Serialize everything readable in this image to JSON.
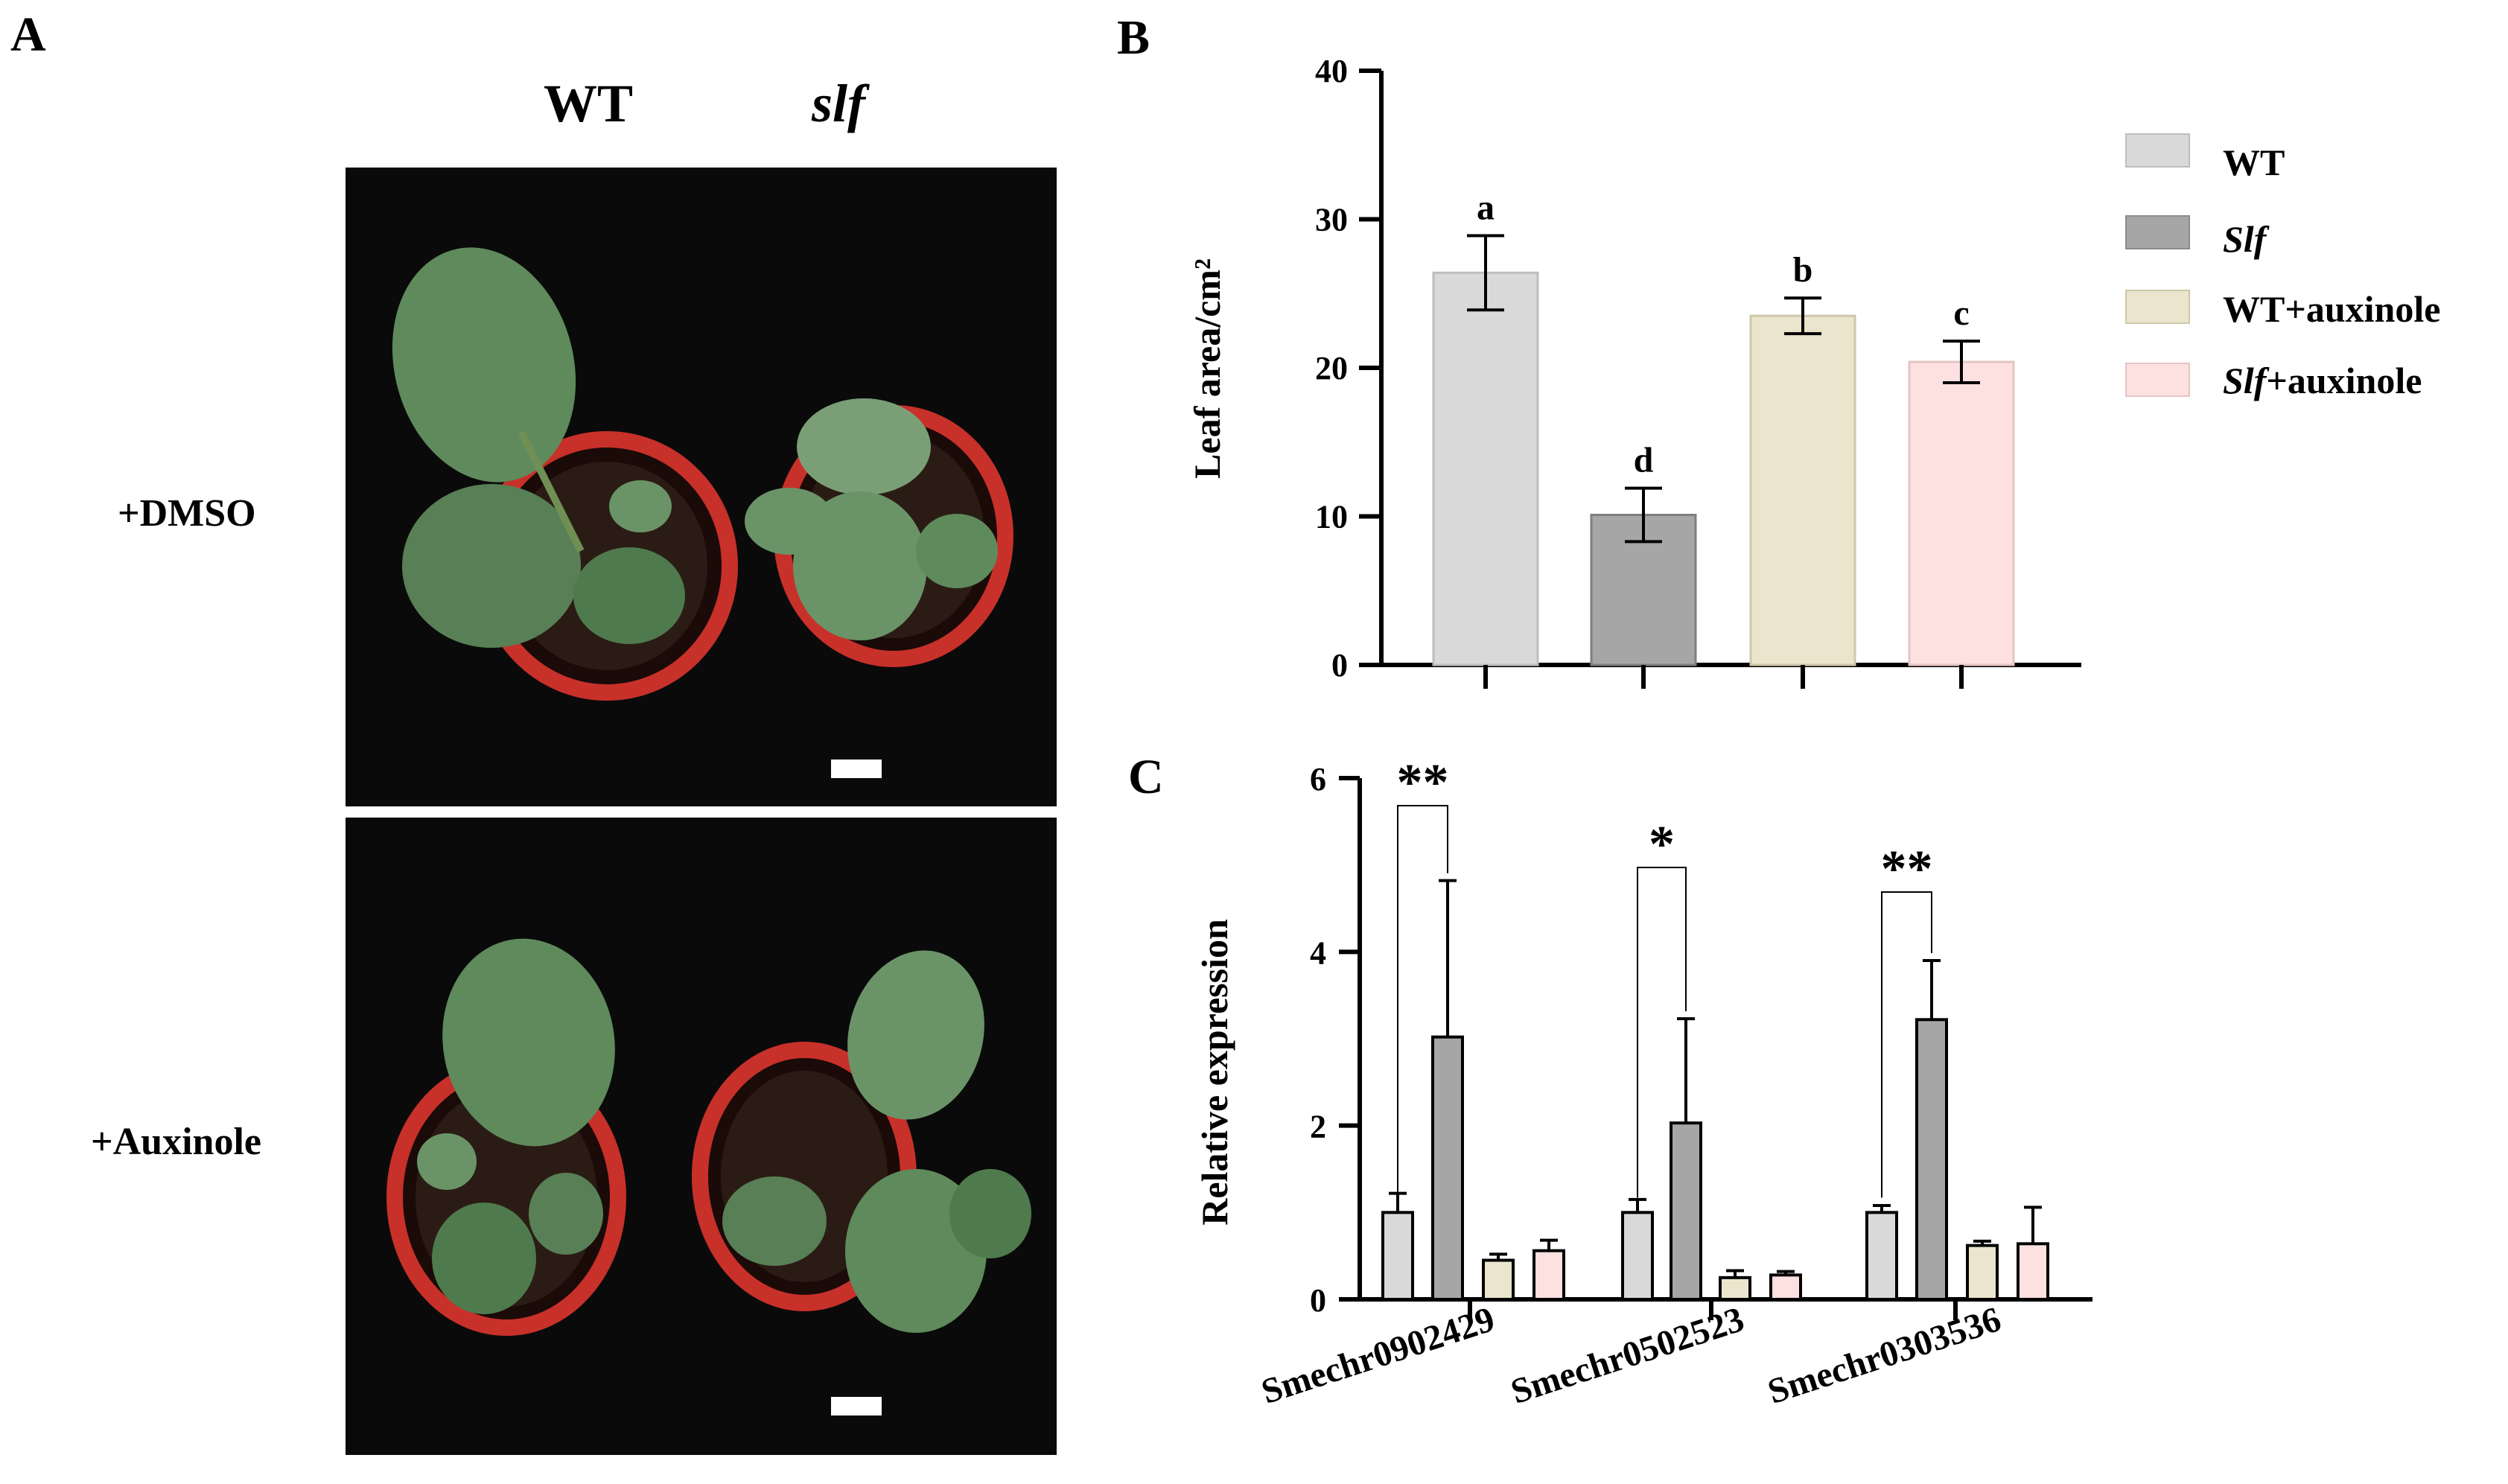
{
  "panels": {
    "A": {
      "letter": "A",
      "col_headers": [
        "WT",
        "slf"
      ],
      "row_labels": [
        "+DMSO",
        "+Auxinole"
      ]
    },
    "B": {
      "letter": "B"
    },
    "C": {
      "letter": "C"
    }
  },
  "legend": [
    {
      "label": "WT",
      "italic": false,
      "color": "#d9d9d9"
    },
    {
      "label": "Slf",
      "italic": true,
      "color": "#a6a6a6"
    },
    {
      "label": "WT+auxinole",
      "italic_prefix": "",
      "plain_suffix": "",
      "color": "#ebe5cd"
    },
    {
      "label": "Slf+auxinole",
      "color": "#fde0e0"
    }
  ],
  "legend_parts": [
    {
      "italic": "",
      "plain": "WT"
    },
    {
      "italic": "Slf",
      "plain": ""
    },
    {
      "italic": "",
      "plain": "WT+auxinole"
    },
    {
      "italic": "Slf",
      "plain": "+auxinole"
    }
  ],
  "colors": {
    "wt": "#d9d9d9",
    "slf": "#a6a6a6",
    "wt_auxinole": "#ebe5cd",
    "slf_auxinole": "#fde0e0"
  },
  "chart_data": [
    {
      "panel": "B",
      "type": "bar",
      "ylabel": "Leaf area/cm²",
      "ylim": [
        0,
        40
      ],
      "yticks": [
        0,
        10,
        20,
        30,
        40
      ],
      "categories": [
        "WT",
        "Slf",
        "WT+auxinole",
        "Slf+auxinole"
      ],
      "values": [
        26.4,
        10.1,
        23.5,
        20.4
      ],
      "errors": [
        2.5,
        1.8,
        1.2,
        1.4
      ],
      "letters": [
        "a",
        "d",
        "b",
        "c"
      ]
    },
    {
      "panel": "C",
      "type": "bar",
      "ylabel": "Relative expression",
      "ylim": [
        0,
        6
      ],
      "yticks": [
        0,
        2,
        4,
        6
      ],
      "categories": [
        "Smechr0902429",
        "Smechr0502523",
        "Smechr0303536"
      ],
      "series": [
        {
          "values": [
            1.0,
            1.0,
            1.0
          ],
          "errors": [
            0.22,
            0.15,
            0.08
          ]
        },
        {
          "values": [
            3.02,
            2.03,
            3.22
          ],
          "errors": [
            1.8,
            1.2,
            0.68
          ]
        },
        {
          "values": [
            0.45,
            0.25,
            0.62
          ],
          "errors": [
            0.07,
            0.08,
            0.05
          ]
        },
        {
          "values": [
            0.56,
            0.28,
            0.64
          ],
          "errors": [
            0.12,
            0.04,
            0.42
          ]
        }
      ],
      "significance": [
        "**",
        "*",
        "**"
      ]
    }
  ]
}
